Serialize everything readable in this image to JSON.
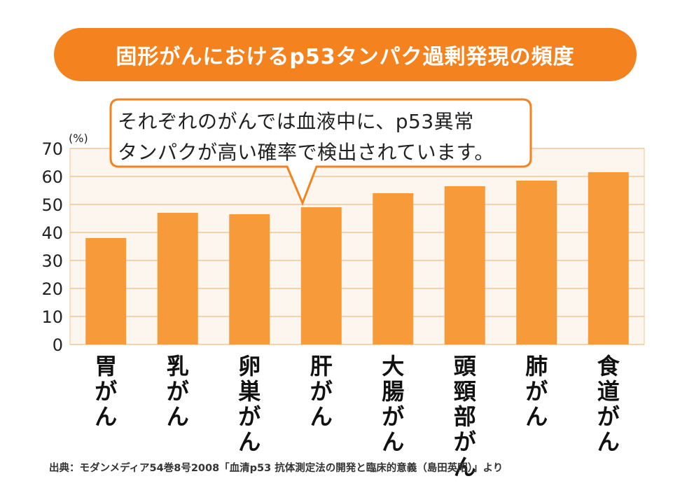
{
  "title": "固形がんにおけるp53タンパク過剰発現の頻度",
  "callout": {
    "line1": "それぞれのがんでは血液中に、p53異常",
    "line2": "タンパクが高い確率で検出されています。"
  },
  "source": "出典：モダンメディア54巻8号2008「血清p53 抗体測定法の開発と臨床的意義（島田英昭）」より",
  "colors": {
    "accent": "#f4831f",
    "bar": "#f79a3a",
    "plot_bg": "#fdf6ee",
    "grid": "#f0c79a"
  },
  "chart_data": {
    "type": "bar",
    "categories": [
      "胃がん",
      "乳がん",
      "卵巣がん",
      "肝がん",
      "大腸がん",
      "頭頸部がん",
      "肺がん",
      "食道がん"
    ],
    "values": [
      38,
      47,
      46.5,
      49,
      54,
      56.5,
      58.5,
      61.5
    ],
    "ylabel": "(%)",
    "ylim": [
      0,
      70
    ],
    "yticks": [
      0,
      10,
      20,
      30,
      40,
      50,
      60,
      70
    ],
    "grid": true
  }
}
